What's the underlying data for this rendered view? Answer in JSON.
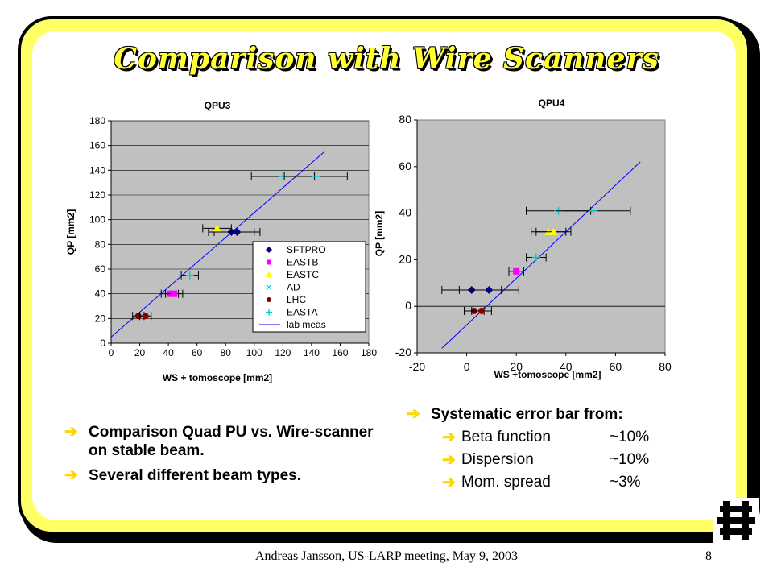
{
  "slide": {
    "title": "Comparison with Wire Scanners",
    "footer": "Andreas Jansson, US-LARP meeting, May 9, 2003",
    "page_number": "8",
    "colors": {
      "frame": "#ffff66",
      "title": "#ffff33",
      "bullet_arrow": "#ffd700",
      "plot_bg": "#c0c0c0"
    }
  },
  "left_bullets": [
    "Comparison Quad PU vs. Wire-scanner on stable beam.",
    "Several different beam types."
  ],
  "right_bullets": {
    "heading": "Systematic error bar from:",
    "items": [
      {
        "label": "Beta function",
        "value": "~10%"
      },
      {
        "label": "Dispersion",
        "value": "~10%"
      },
      {
        "label": "Mom. spread",
        "value": "~3%"
      }
    ]
  },
  "chart_data": [
    {
      "type": "scatter",
      "title": "QPU3",
      "xlabel": "WS + tomoscope [mm2]",
      "ylabel": "QP [mm2]",
      "xlim": [
        0,
        180
      ],
      "ylim": [
        0,
        180
      ],
      "xticks": [
        "0",
        "20",
        "40",
        "60",
        "80",
        "100",
        "120",
        "140",
        "160",
        "180"
      ],
      "yticks": [
        "0",
        "20",
        "40",
        "60",
        "80",
        "100",
        "120",
        "140",
        "160",
        "180"
      ],
      "grid": true,
      "legend_position": "right",
      "series": [
        {
          "name": "SFTPRO",
          "marker": "diamond",
          "color": "#000080",
          "points": [
            {
              "x": 84,
              "y": 90,
              "xerr": 16
            },
            {
              "x": 88,
              "y": 90,
              "xerr": 16
            }
          ]
        },
        {
          "name": "EASTB",
          "marker": "square",
          "color": "#ff00ff",
          "points": [
            {
              "x": 41,
              "y": 40,
              "xerr": 6
            },
            {
              "x": 44,
              "y": 40,
              "xerr": 6
            }
          ]
        },
        {
          "name": "EASTC",
          "marker": "triangle",
          "color": "#ffff00",
          "points": [
            {
              "x": 74,
              "y": 93,
              "xerr": 10
            }
          ]
        },
        {
          "name": "AD",
          "marker": "x",
          "color": "#00cccc",
          "points": []
        },
        {
          "name": "LHC",
          "marker": "circle",
          "color": "#800000",
          "points": [
            {
              "x": 19,
              "y": 22,
              "xerr": 4
            },
            {
              "x": 24,
              "y": 22,
              "xerr": 4
            }
          ]
        },
        {
          "name": "EASTA",
          "marker": "plus",
          "color": "#00cccc",
          "points": [
            {
              "x": 55,
              "y": 55,
              "xerr": 6
            },
            {
              "x": 120,
              "y": 135,
              "xerr": 22
            },
            {
              "x": 143,
              "y": 135,
              "xerr": 22
            }
          ]
        },
        {
          "name": "lab meas",
          "type": "line",
          "color": "#0000ff",
          "line": [
            {
              "x": 0,
              "y": 5
            },
            {
              "x": 149,
              "y": 155
            }
          ]
        }
      ]
    },
    {
      "type": "scatter",
      "title": "QPU4",
      "xlabel": "WS +tomoscope [mm2]",
      "ylabel": "QP [mm2]",
      "xlim": [
        -20,
        80
      ],
      "ylim": [
        -20,
        80
      ],
      "xticks": [
        "-20",
        "0",
        "20",
        "40",
        "60",
        "80"
      ],
      "yticks": [
        "-20",
        "0",
        "20",
        "40",
        "60",
        "80"
      ],
      "grid": false,
      "series": [
        {
          "name": "SFTPRO",
          "marker": "diamond",
          "color": "#000080",
          "points": [
            {
              "x": 2,
              "y": 7,
              "xerr": 12
            },
            {
              "x": 9,
              "y": 7,
              "xerr": 12
            }
          ]
        },
        {
          "name": "EASTB",
          "marker": "square",
          "color": "#ff00ff",
          "points": [
            {
              "x": 20,
              "y": 15,
              "xerr": 3
            }
          ]
        },
        {
          "name": "EASTC",
          "marker": "triangle",
          "color": "#ffff00",
          "points": [
            {
              "x": 33,
              "y": 32,
              "xerr": 7
            },
            {
              "x": 35,
              "y": 32,
              "xerr": 7
            }
          ]
        },
        {
          "name": "LHC",
          "marker": "circle",
          "color": "#800000",
          "points": [
            {
              "x": 3,
              "y": -2,
              "xerr": 4
            },
            {
              "x": 6,
              "y": -2,
              "xerr": 4
            }
          ]
        },
        {
          "name": "EASTA",
          "marker": "plus",
          "color": "#00cccc",
          "points": [
            {
              "x": 28,
              "y": 21,
              "xerr": 4
            },
            {
              "x": 37,
              "y": 41,
              "xerr": 13
            },
            {
              "x": 51,
              "y": 41,
              "xerr": 15
            }
          ]
        },
        {
          "name": "lab meas",
          "type": "line",
          "color": "#0000ff",
          "line": [
            {
              "x": -10,
              "y": -18
            },
            {
              "x": 70,
              "y": 62
            }
          ]
        }
      ]
    }
  ]
}
